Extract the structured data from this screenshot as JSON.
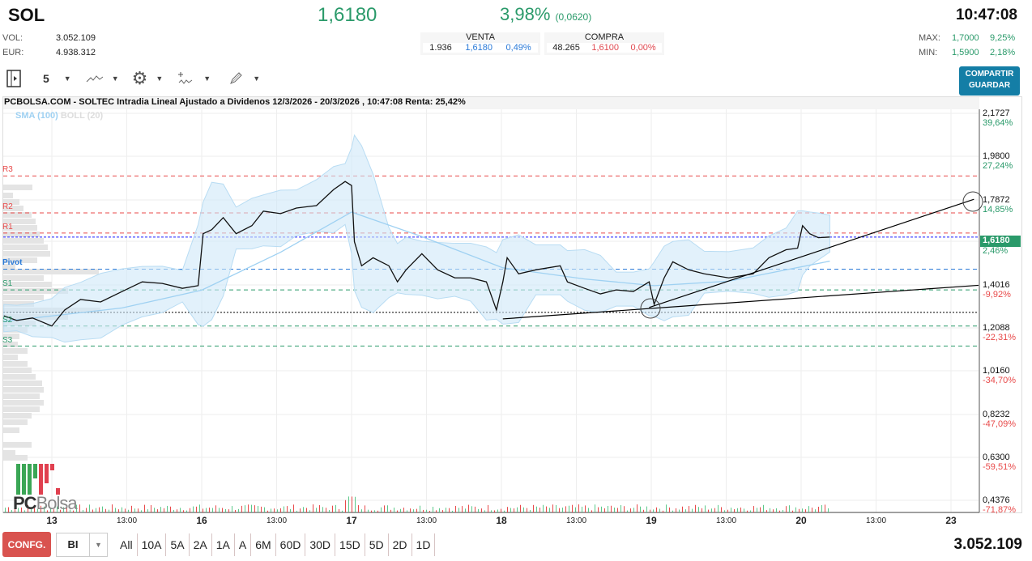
{
  "header": {
    "symbol": "SOL",
    "price": "1,6180",
    "change_pct": "3,98%",
    "change_abs": "(0,0620)",
    "time": "10:47:08",
    "vol_label": "VOL:",
    "vol": "3.052.109",
    "eur_label": "EUR:",
    "eur": "4.938.312",
    "max_label": "MAX:",
    "max": "1,7000",
    "max_pct": "9,25%",
    "min_label": "MIN:",
    "min": "1,5900",
    "min_pct": "2,18%"
  },
  "venta": {
    "title": "VENTA",
    "qty": "1.936",
    "price": "1,6180",
    "pct": "0,49%"
  },
  "compra": {
    "title": "COMPRA",
    "qty": "48.265",
    "price": "1,6100",
    "pct": "0,00%"
  },
  "share_button": {
    "line1": "COMPARTIR",
    "line2": "GUARDAR"
  },
  "toolbar": {
    "interval": "5",
    "icons": [
      "sidebar-toggle-icon",
      "line-chart-icon",
      "gear-icon",
      "indicators-icon",
      "pencil-icon"
    ]
  },
  "chart_title": "PCBOLSA.COM - SOLTEC Intradia Lineal Ajustado a Dividenos 12/3/2026 - 20/3/2026 , 10:47:08 Renta: 25,42%",
  "legend": {
    "sma": "SMA (100)",
    "boll": "BOLL (20)"
  },
  "logo_text": "PCBolsa",
  "chart_data": {
    "type": "line",
    "x_ticks": [
      {
        "label": "13",
        "bold": true
      },
      {
        "label": "13:00"
      },
      {
        "label": "16",
        "bold": true
      },
      {
        "label": "13:00"
      },
      {
        "label": "17",
        "bold": true
      },
      {
        "label": "13:00"
      },
      {
        "label": "18",
        "bold": true
      },
      {
        "label": "13:00"
      },
      {
        "label": "19",
        "bold": true
      },
      {
        "label": "13:00"
      },
      {
        "label": "20",
        "bold": true
      },
      {
        "label": "13:00"
      },
      {
        "label": "23",
        "bold": true
      }
    ],
    "y_ticks": [
      {
        "v": "2,1727",
        "p": "39,64%"
      },
      {
        "v": "1,9800",
        "p": "27,24%"
      },
      {
        "v": "1,7872",
        "p": "14,85%"
      },
      {
        "v": "1,4016",
        "p": "-9,92%"
      },
      {
        "v": "1,2088",
        "p": "-22,31%"
      },
      {
        "v": "1,0160",
        "p": "-34,70%"
      },
      {
        "v": "0,8232",
        "p": "-47,09%"
      },
      {
        "v": "0,6300",
        "p": "-59,51%"
      },
      {
        "v": "0,4376",
        "p": "-71,87%"
      }
    ],
    "ylim": [
      0.4376,
      2.1727
    ],
    "last": {
      "value": "1,6180",
      "pct": "2,46%"
    },
    "pivots": [
      {
        "name": "R3",
        "value": 1.892,
        "color": "#e84a4a"
      },
      {
        "name": "R2",
        "value": 1.726,
        "color": "#e84a4a"
      },
      {
        "name": "R1",
        "value": 1.636,
        "color": "#e84a4a"
      },
      {
        "name": "Pivot",
        "value": 1.474,
        "color": "#2a7ad8"
      },
      {
        "name": "S1",
        "value": 1.381,
        "color": "#2a9a6a"
      },
      {
        "name": "S2",
        "value": 1.219,
        "color": "#2a9a6a"
      },
      {
        "name": "S3",
        "value": 1.129,
        "color": "#2a9a6a"
      }
    ],
    "prev_close": 1.28,
    "series": [
      [
        "12 14:55",
        1.265
      ],
      [
        "12 15:40",
        1.244
      ],
      [
        "12 16:35",
        1.255
      ],
      [
        "13 09:00",
        1.219
      ],
      [
        "13 09:45",
        1.291
      ],
      [
        "13 10:40",
        1.338
      ],
      [
        "13 11:50",
        1.327
      ],
      [
        "13 13:05",
        1.374
      ],
      [
        "13 14:15",
        1.417
      ],
      [
        "13 15:25",
        1.41
      ],
      [
        "13 16:35",
        1.388
      ],
      [
        "13 17:30",
        1.4
      ],
      [
        "16 09:05",
        1.633
      ],
      [
        "16 09:35",
        1.651
      ],
      [
        "16 10:15",
        1.705
      ],
      [
        "16 11:00",
        1.633
      ],
      [
        "16 11:55",
        1.669
      ],
      [
        "16 12:35",
        1.734
      ],
      [
        "16 13:35",
        1.723
      ],
      [
        "16 14:30",
        1.748
      ],
      [
        "16 15:40",
        1.759
      ],
      [
        "16 16:40",
        1.831
      ],
      [
        "16 17:20",
        1.867
      ],
      [
        "17 09:00",
        1.849
      ],
      [
        "17 09:10",
        1.597
      ],
      [
        "17 09:35",
        1.489
      ],
      [
        "17 10:15",
        1.525
      ],
      [
        "17 11:10",
        1.489
      ],
      [
        "17 11:40",
        1.417
      ],
      [
        "17 12:10",
        1.471
      ],
      [
        "17 13:05",
        1.543
      ],
      [
        "17 14:00",
        1.471
      ],
      [
        "17 15:00",
        1.435
      ],
      [
        "17 15:55",
        1.435
      ],
      [
        "17 16:50",
        1.417
      ],
      [
        "17 17:25",
        1.291
      ],
      [
        "18 09:05",
        1.417
      ],
      [
        "18 09:20",
        1.525
      ],
      [
        "18 10:00",
        1.453
      ],
      [
        "18 11:00",
        1.471
      ],
      [
        "18 12:25",
        1.489
      ],
      [
        "18 12:50",
        1.417
      ],
      [
        "18 13:50",
        1.388
      ],
      [
        "18 14:45",
        1.363
      ],
      [
        "18 15:40",
        1.381
      ],
      [
        "18 16:40",
        1.374
      ],
      [
        "18 17:35",
        1.417
      ],
      [
        "19 09:10",
        1.316
      ],
      [
        "19 09:45",
        1.435
      ],
      [
        "19 10:15",
        1.507
      ],
      [
        "19 11:10",
        1.471
      ],
      [
        "19 12:05",
        1.453
      ],
      [
        "19 13:30",
        1.435
      ],
      [
        "19 14:55",
        1.453
      ],
      [
        "19 15:50",
        1.525
      ],
      [
        "19 16:50",
        1.561
      ],
      [
        "19 17:30",
        1.568
      ],
      [
        "20 09:05",
        1.669
      ],
      [
        "20 09:30",
        1.633
      ],
      [
        "20 10:00",
        1.615
      ],
      [
        "20 10:40",
        1.618
      ]
    ],
    "sma": [
      [
        "12 14:55",
        1.24
      ],
      [
        "13 13:05",
        1.3
      ],
      [
        "16 09:00",
        1.38
      ],
      [
        "16 13:35",
        1.55
      ],
      [
        "17 09:00",
        1.73
      ],
      [
        "17 13:05",
        1.62
      ],
      [
        "18 09:05",
        1.48
      ],
      [
        "18 13:50",
        1.43
      ],
      [
        "19 09:10",
        1.4
      ],
      [
        "19 13:30",
        1.42
      ],
      [
        "20 10:40",
        1.51
      ]
    ],
    "trendlines": [
      [
        [
          "18 09:05",
          1.251
        ],
        [
          "23 10:40",
          1.4016
        ]
      ],
      [
        [
          "18 17:35",
          1.302
        ],
        [
          "23 10:20",
          1.7872
        ]
      ]
    ]
  },
  "bottom": {
    "config": "CONFG.",
    "chart_type": "BI",
    "periods": [
      "All",
      "10A",
      "5A",
      "2A",
      "1A",
      "A",
      "6M",
      "60D",
      "30D",
      "15D",
      "5D",
      "2D",
      "1D"
    ],
    "volume": "3.052.109"
  }
}
